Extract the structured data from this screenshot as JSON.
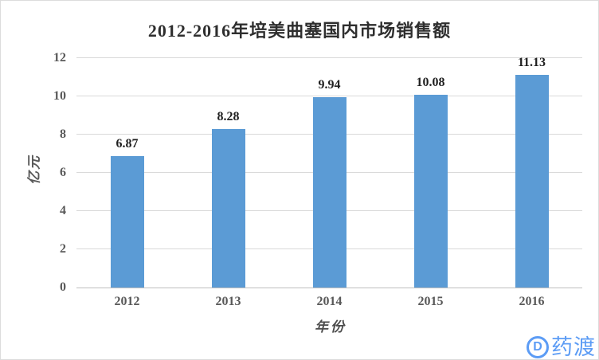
{
  "chart_data": {
    "type": "bar",
    "title": "2012-2016年培美曲塞国内市场销售额",
    "categories": [
      "2012",
      "2013",
      "2014",
      "2015",
      "2016"
    ],
    "values": [
      6.87,
      8.28,
      9.94,
      10.08,
      11.13
    ],
    "value_labels": [
      "6.87",
      "8.28",
      "9.94",
      "10.08",
      "11.13"
    ],
    "xlabel": "年份",
    "ylabel": "亿元",
    "ylim": [
      0,
      12
    ],
    "ytick_step": 2,
    "yticks": [
      "0",
      "2",
      "4",
      "6",
      "8",
      "10",
      "12"
    ],
    "grid": true,
    "legend": "none",
    "bar_color": "#5B9BD5",
    "gridline_color": "#D9D9D9",
    "axis_line_color": "#BFBFBF",
    "title_color": "#2E2E2E",
    "tick_color": "#595959",
    "data_label_color": "#1F1F1F"
  },
  "watermark": {
    "logo_letter": "D",
    "text": "药渡",
    "color": "#5C9CF5"
  }
}
